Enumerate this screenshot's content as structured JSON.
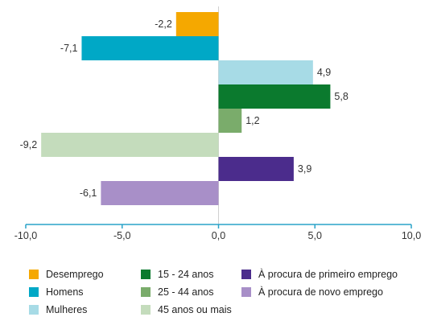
{
  "chart_data": {
    "type": "bar",
    "orientation": "horizontal",
    "categories": [
      "Desemprego",
      "Homens",
      "Mulheres",
      "15 - 24 anos",
      "25 - 44 anos",
      "45 anos ou mais",
      "À procura de primeiro emprego",
      "À procura de novo emprego"
    ],
    "values": [
      -2.2,
      -7.1,
      4.9,
      5.8,
      1.2,
      -9.2,
      3.9,
      -6.1
    ],
    "value_labels": [
      "-2,2",
      "-7,1",
      "4,9",
      "5,8",
      "1,2",
      "-9,2",
      "3,9",
      "-6,1"
    ],
    "colors": [
      "#f5a800",
      "#00a8c6",
      "#a7dbe6",
      "#0b7a2e",
      "#7aac6b",
      "#c4dcbc",
      "#4b2c8c",
      "#a88fc8"
    ],
    "xlim": [
      -10,
      10
    ],
    "xticks": [
      -10,
      -5,
      0,
      5,
      10
    ],
    "xtick_labels": [
      "-10,0",
      "-5,0",
      "0,0",
      "5,0",
      "10,0"
    ],
    "axis_color": "#2aa3c9",
    "grid": false,
    "legend_position": "bottom"
  },
  "legend": [
    "Desemprego",
    "Homens",
    "Mulheres",
    "15 - 24 anos",
    "25 - 44 anos",
    "45 anos ou mais",
    "À procura de primeiro emprego",
    "À procura de novo emprego"
  ]
}
